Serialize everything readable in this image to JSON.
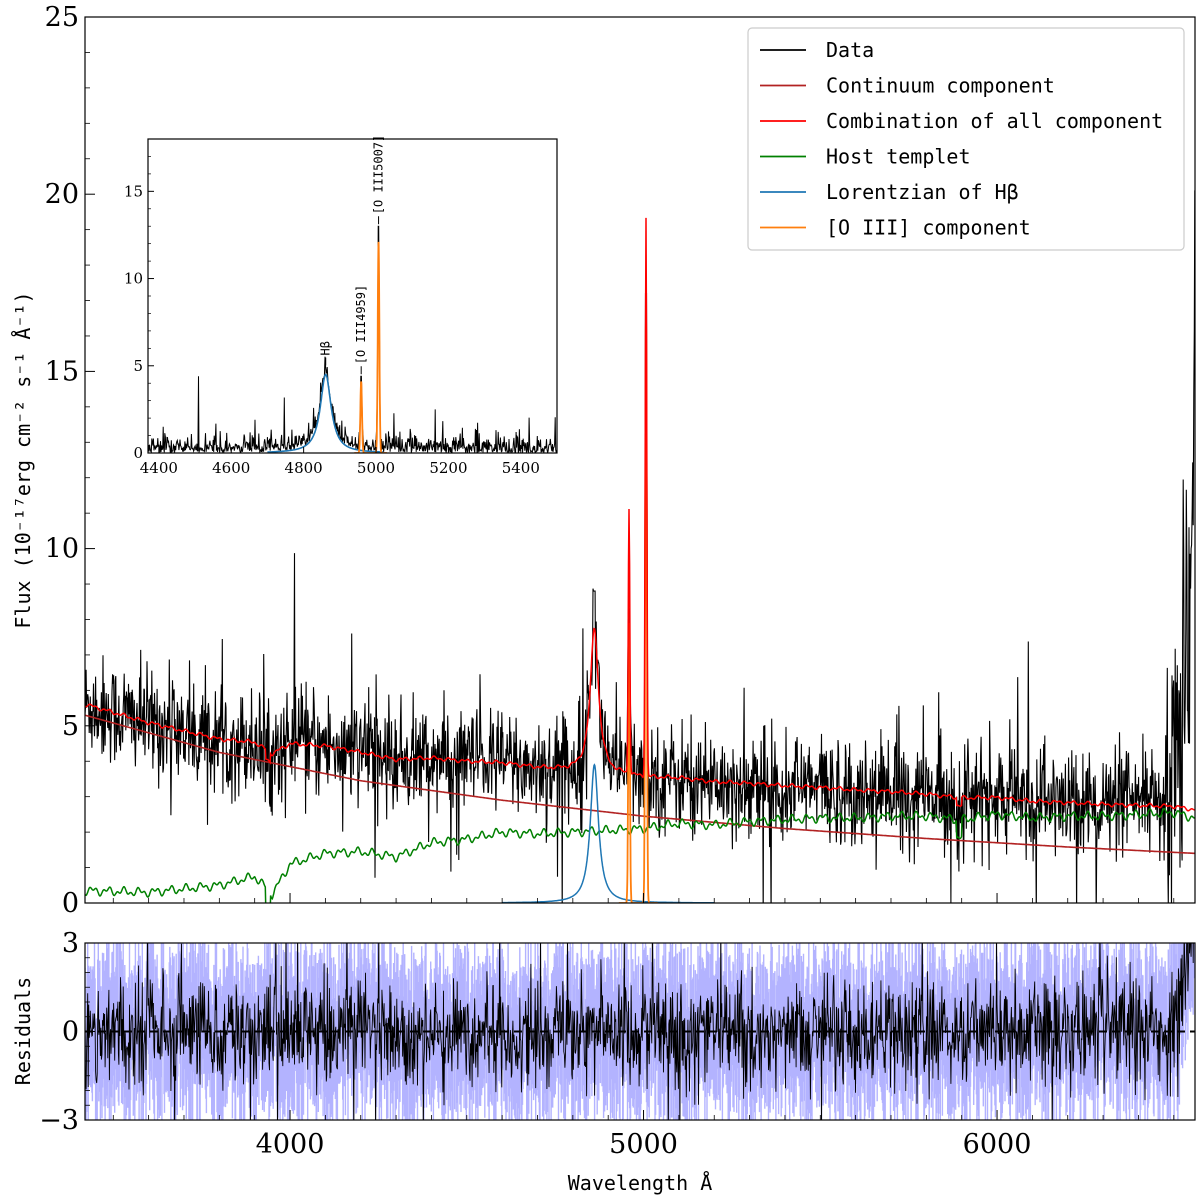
{
  "chart_data": [
    {
      "type": "line",
      "panel": "main",
      "xlabel": "Wavelength Å",
      "ylabel": "Flux (10⁻¹⁷erg cm⁻² s⁻¹ Å⁻¹)",
      "xlim": [
        3420,
        6560
      ],
      "ylim": [
        0,
        25
      ],
      "yticks": [
        0,
        5,
        10,
        15,
        20,
        25
      ],
      "xticks": [
        4000,
        5000,
        6000
      ],
      "legend_position": "top-right",
      "legend": [
        {
          "label": "Data",
          "color": "#000000"
        },
        {
          "label": "Continuum component",
          "color": "#b22222"
        },
        {
          "label": "Combination of all component",
          "color": "#ff0000"
        },
        {
          "label": "Host templet",
          "color": "#008000"
        },
        {
          "label": "Lorentzian of Hβ",
          "color": "#1f77b4"
        },
        {
          "label": "[O III] component",
          "color": "#ff7f0e"
        }
      ],
      "series": [
        {
          "name": "Continuum component",
          "color": "#b22222",
          "kind": "powerlaw",
          "x": [
            3420,
            3800,
            4200,
            4600,
            5000,
            5400,
            5800,
            6200,
            6560
          ],
          "y": [
            5.3,
            4.25,
            3.45,
            2.9,
            2.45,
            2.1,
            1.82,
            1.58,
            1.4
          ]
        },
        {
          "name": "Host templet",
          "color": "#008000",
          "x": [
            3420,
            3600,
            3800,
            3900,
            3950,
            4000,
            4100,
            4200,
            4300,
            4400,
            4500,
            4600,
            4700,
            4800,
            4900,
            5000,
            5100,
            5200,
            5300,
            5400,
            5500,
            5600,
            5700,
            5800,
            5900,
            6000,
            6100,
            6200,
            6300,
            6400,
            6500,
            6560
          ],
          "y": [
            0.35,
            0.3,
            0.5,
            0.75,
            0.25,
            1.1,
            1.4,
            1.45,
            1.3,
            1.7,
            1.8,
            2.0,
            1.95,
            2.0,
            2.05,
            2.1,
            2.25,
            2.2,
            2.3,
            2.35,
            2.4,
            2.4,
            2.45,
            2.45,
            2.35,
            2.5,
            2.4,
            2.45,
            2.45,
            2.5,
            2.55,
            2.4
          ]
        },
        {
          "name": "Lorentzian of Hβ",
          "color": "#1f77b4",
          "center": 4861,
          "peak": 3.9,
          "hwhm": 14
        },
        {
          "name": "[O III] component",
          "color": "#ff7f0e",
          "lines": [
            {
              "center": 4959,
              "peak": 7.9
            },
            {
              "center": 5007,
              "peak": 16.6
            }
          ]
        },
        {
          "name": "Combination of all component",
          "color": "#ff0000",
          "note": "sum of continuum, host and line components"
        },
        {
          "name": "Data",
          "color": "#000000",
          "note": "noisy observed spectrum scattered around the model, strong upturn near 6500-6560 Å reaching ~20.6"
        }
      ]
    },
    {
      "type": "line",
      "panel": "inset",
      "xlim": [
        4370,
        5500
      ],
      "ylim": [
        0,
        18
      ],
      "xticks": [
        4400,
        4600,
        4800,
        5000,
        5200,
        5400
      ],
      "yticks": [
        0,
        5,
        10,
        15
      ],
      "annotations": [
        {
          "label": "Hβ",
          "x": 4861,
          "y": 4.9
        },
        {
          "label": "[O III4959]",
          "x": 4959,
          "y": 4.4
        },
        {
          "label": "[O III5007]",
          "x": 5007,
          "y": 13.0
        }
      ],
      "series": [
        {
          "name": "Lorentzian of Hβ",
          "color": "#1f77b4",
          "center": 4861,
          "peak": 4.5,
          "hwhm": 18
        },
        {
          "name": "[O III] component",
          "color": "#ff7f0e",
          "lines": [
            {
              "center": 4959,
              "peak": 4.1
            },
            {
              "center": 5007,
              "peak": 12.1
            }
          ]
        }
      ]
    },
    {
      "type": "line",
      "panel": "residuals",
      "xlabel": "Wavelength Å",
      "ylabel": "Residuals",
      "xlim": [
        3420,
        6560
      ],
      "ylim": [
        -3,
        3
      ],
      "yticks": [
        -3,
        0,
        3
      ],
      "series": [
        {
          "name": "residual",
          "color": "#000000"
        },
        {
          "name": "error band",
          "color": "#9999ff"
        }
      ]
    }
  ]
}
